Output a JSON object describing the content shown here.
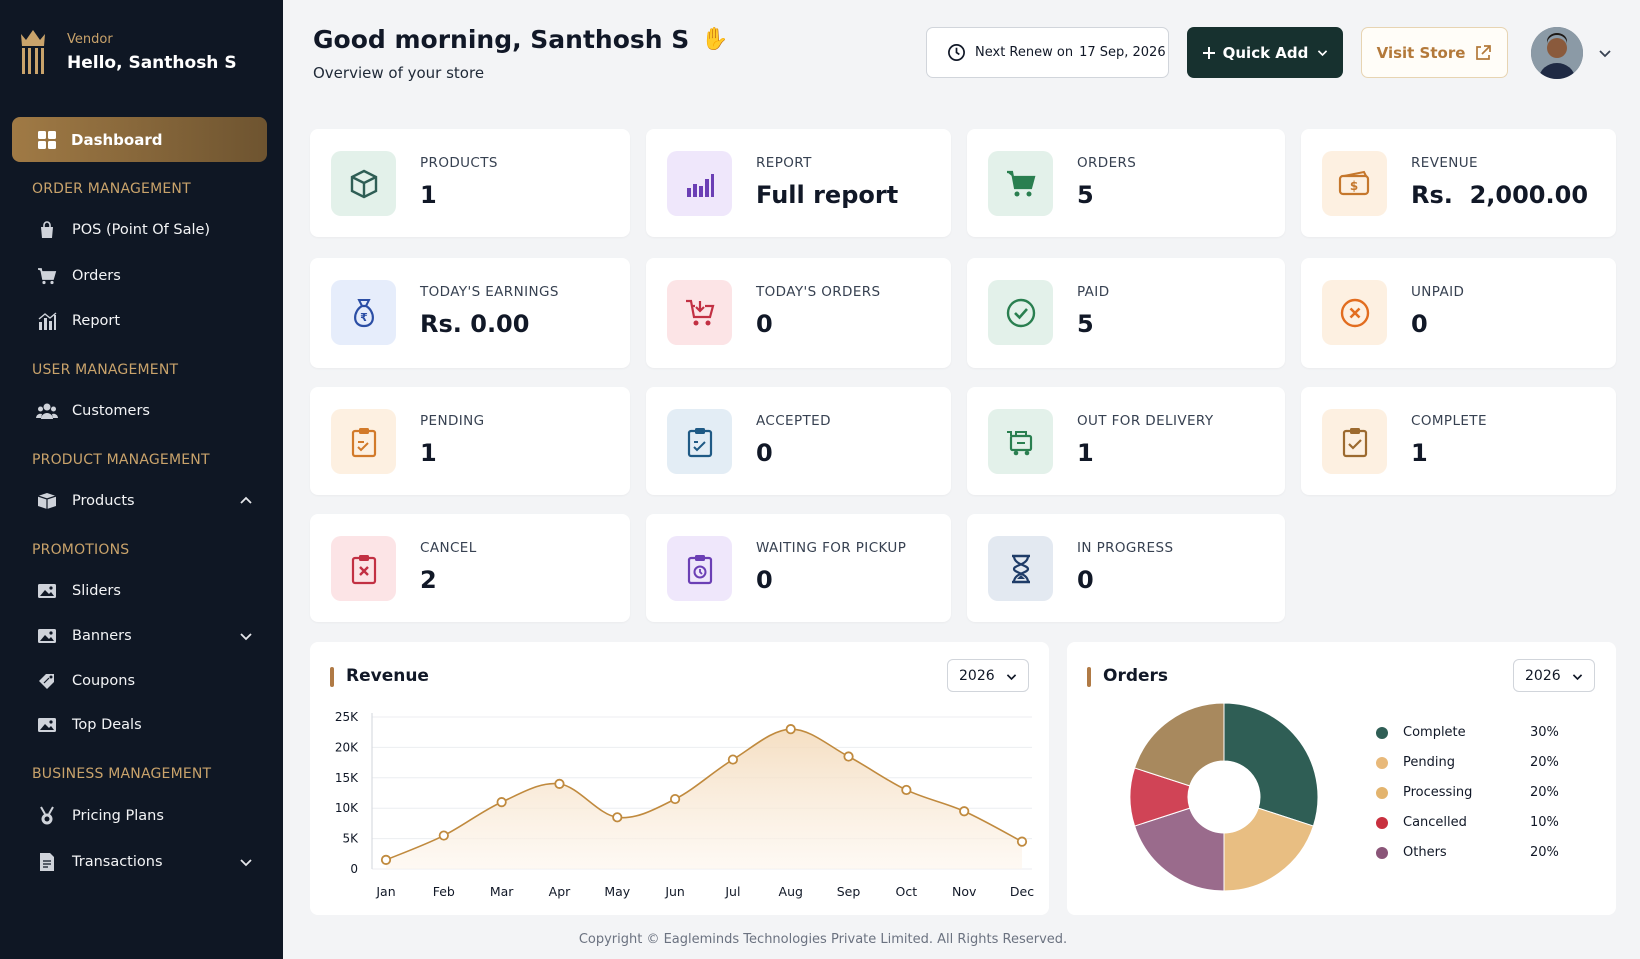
{
  "sidebar": {
    "role": "Vendor",
    "hello": "Hello, Santhosh S",
    "dashboard": "Dashboard",
    "sections": {
      "order": "ORDER MANAGEMENT",
      "user": "USER MANAGEMENT",
      "product": "PRODUCT MANAGEMENT",
      "promotions": "PROMOTIONS",
      "business": "BUSINESS MANAGEMENT"
    },
    "items": {
      "pos": "POS (Point Of Sale)",
      "orders": "Orders",
      "report": "Report",
      "customers": "Customers",
      "products": "Products",
      "sliders": "Sliders",
      "banners": "Banners",
      "coupons": "Coupons",
      "top_deals": "Top Deals",
      "pricing_plans": "Pricing Plans",
      "transactions": "Transactions"
    }
  },
  "header": {
    "greeting": "Good morning, Santhosh S",
    "subtitle": "Overview of your store",
    "renew_label": "Next Renew on",
    "renew_date": "17 Sep, 2026",
    "quick_add": "Quick Add",
    "visit_store": "Visit Store"
  },
  "stats": {
    "products": {
      "label": "PRODUCTS",
      "value": "1"
    },
    "report": {
      "label": "REPORT",
      "value": "Full report"
    },
    "orders": {
      "label": "ORDERS",
      "value": "5"
    },
    "revenue": {
      "label": "REVENUE",
      "value": "Rs.  2,000.00"
    },
    "today_earnings": {
      "label": "TODAY'S EARNINGS",
      "value": "Rs. 0.00"
    },
    "today_orders": {
      "label": "TODAY'S ORDERS",
      "value": "0"
    },
    "paid": {
      "label": "PAID",
      "value": "5"
    },
    "unpaid": {
      "label": "UNPAID",
      "value": "0"
    },
    "pending": {
      "label": "PENDING",
      "value": "1"
    },
    "accepted": {
      "label": "ACCEPTED",
      "value": "0"
    },
    "out_for_delivery": {
      "label": "OUT FOR DELIVERY",
      "value": "1"
    },
    "complete": {
      "label": "COMPLETE",
      "value": "1"
    },
    "cancel": {
      "label": "CANCEL",
      "value": "2"
    },
    "waiting_for_pickup": {
      "label": "WAITING FOR PICKUP",
      "value": "0"
    },
    "in_progress": {
      "label": "IN PROGRESS",
      "value": "0"
    }
  },
  "revenue_panel": {
    "title": "Revenue",
    "year": "2026"
  },
  "orders_panel": {
    "title": "Orders",
    "year": "2026"
  },
  "chart_data": [
    {
      "type": "area",
      "title": "Revenue",
      "categories": [
        "Jan",
        "Feb",
        "Mar",
        "Apr",
        "May",
        "Jun",
        "Jul",
        "Aug",
        "Sep",
        "Oct",
        "Nov",
        "Dec"
      ],
      "values": [
        1500,
        5500,
        11000,
        14000,
        8500,
        11500,
        18000,
        23000,
        18500,
        13000,
        9500,
        4500
      ],
      "yticks": [
        "0",
        "5K",
        "10K",
        "15K",
        "20K",
        "25K"
      ],
      "ylim": [
        0,
        25000
      ],
      "color": "#c08a3e"
    },
    {
      "type": "pie",
      "title": "Orders",
      "labels": [
        "Complete",
        "Pending",
        "Processing",
        "Cancelled",
        "Others"
      ],
      "values": [
        30,
        20,
        20,
        10,
        20
      ],
      "display": [
        "30%",
        "20%",
        "20%",
        "10%",
        "20%"
      ],
      "colors": [
        "#2f5e55",
        "#e8b97a",
        "#e3b46e",
        "#c8303f",
        "#8a5578"
      ],
      "slice_colors_in_chart": [
        "#2f5e55",
        "#e8be82",
        "#9a6b8c",
        "#d04456",
        "#a8895e"
      ]
    }
  ],
  "footer": "Copyright © Eagleminds Technologies Private Limited. All Rights Reserved."
}
